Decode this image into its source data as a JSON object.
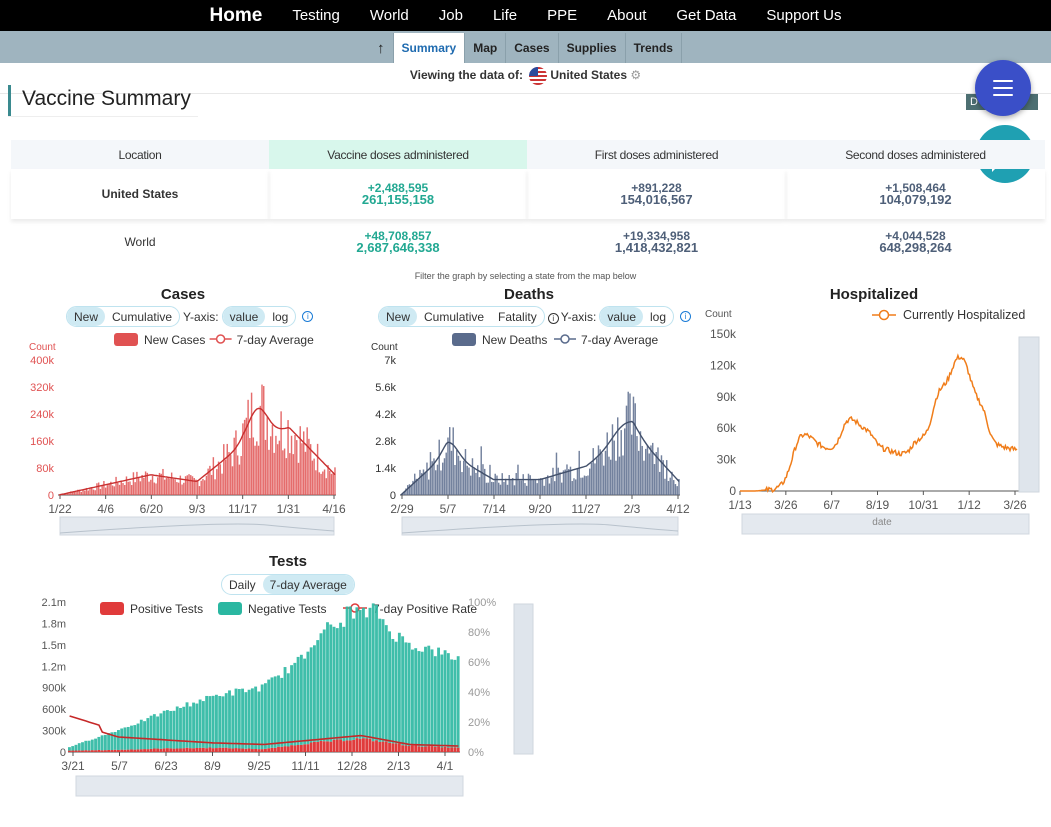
{
  "nav": {
    "items": [
      "Home",
      "Testing",
      "World",
      "Job",
      "Life",
      "PPE",
      "About",
      "Get Data",
      "Support Us"
    ]
  },
  "subnav": {
    "up_icon": "arrow-up-icon",
    "tabs": [
      "Summary",
      "Map",
      "Cases",
      "Supplies",
      "Trends"
    ],
    "active": "Summary"
  },
  "viewing": {
    "label": "Viewing the data of:",
    "country": "United States"
  },
  "section": {
    "title": "Vaccine Summary",
    "badge": "D"
  },
  "vaccine_table": {
    "headers": [
      "Location",
      "Vaccine doses administered",
      "First doses administered",
      "Second doses administered"
    ],
    "rows": [
      {
        "location": "United States",
        "vac_delta": "+2,488,595",
        "vac_total": "261,155,158",
        "first_delta": "+891,228",
        "first_total": "154,016,567",
        "second_delta": "+1,508,464",
        "second_total": "104,079,192"
      },
      {
        "location": "World",
        "vac_delta": "+48,708,857",
        "vac_total": "2,687,646,338",
        "first_delta": "+19,334,958",
        "first_total": "1,418,432,821",
        "second_delta": "+4,044,528",
        "second_total": "648,298,264"
      }
    ]
  },
  "filter_note": "Filter the graph by selecting a state from the map below",
  "colors": {
    "cases": "#e05252",
    "deaths": "#5a6b8c",
    "hosp": "#f07d1a",
    "neg": "#2ab7a1",
    "pos": "#e03b3b",
    "accent": "#3a4fc8"
  },
  "cases_chart": {
    "title": "Cases",
    "toggles": {
      "mode": [
        "New",
        "Cumulative"
      ],
      "axis_label": "Y-axis:",
      "axis": [
        "value",
        "log"
      ]
    },
    "count_label": "Count",
    "legend": [
      "New Cases",
      "7-day Average"
    ],
    "y_ticks": [
      "400k",
      "320k",
      "240k",
      "160k",
      "80k",
      "0"
    ],
    "x_ticks": [
      "1/22",
      "4/6",
      "6/20",
      "9/3",
      "11/17",
      "1/31",
      "4/16"
    ]
  },
  "deaths_chart": {
    "title": "Deaths",
    "toggles": {
      "mode": [
        "New",
        "Cumulative",
        "Fatality"
      ],
      "axis_label": "Y-axis:",
      "axis": [
        "value",
        "log"
      ]
    },
    "count_label": "Count",
    "legend": [
      "New Deaths",
      "7-day Average"
    ],
    "y_ticks": [
      "7k",
      "5.6k",
      "4.2k",
      "2.8k",
      "1.4k",
      "0"
    ],
    "x_ticks": [
      "2/29",
      "5/7",
      "7/14",
      "9/20",
      "11/27",
      "2/3",
      "4/12"
    ]
  },
  "hosp_chart": {
    "title": "Hospitalized",
    "count_label": "Count",
    "legend": [
      "Currently Hospitalized"
    ],
    "y_ticks": [
      "150k",
      "120k",
      "90k",
      "60k",
      "30k",
      "0"
    ],
    "x_ticks": [
      "1/13",
      "3/26",
      "6/7",
      "8/19",
      "10/31",
      "1/12",
      "3/26"
    ],
    "x_title": "date"
  },
  "tests_chart": {
    "title": "Tests",
    "toggles": [
      "Daily",
      "7-day Average"
    ],
    "legend": [
      "Positive Tests",
      "Negative Tests",
      "7-day Positive Rate"
    ],
    "y_ticks": [
      "2.1m",
      "1.8m",
      "1.5m",
      "1.2m",
      "900k",
      "600k",
      "300k",
      "0"
    ],
    "y2_ticks": [
      "100%",
      "80%",
      "60%",
      "40%",
      "20%",
      "0%"
    ],
    "x_ticks": [
      "3/21",
      "5/7",
      "6/23",
      "8/9",
      "9/25",
      "11/11",
      "12/28",
      "2/13",
      "4/1"
    ]
  },
  "chart_data": [
    {
      "type": "bar",
      "title": "Cases",
      "ylabel": "Count",
      "ylim": [
        0,
        400000
      ],
      "categories": [
        "1/22",
        "4/6",
        "6/20",
        "9/3",
        "11/17",
        "1/31",
        "4/16"
      ],
      "series": [
        {
          "name": "New Cases",
          "values": [
            0,
            30000,
            60000,
            40000,
            150000,
            200000,
            60000
          ]
        },
        {
          "name": "7-day Average",
          "values": [
            0,
            28000,
            55000,
            38000,
            145000,
            190000,
            58000
          ]
        }
      ]
    },
    {
      "type": "bar",
      "title": "Deaths",
      "ylabel": "Count",
      "ylim": [
        0,
        7000
      ],
      "categories": [
        "2/29",
        "5/7",
        "7/14",
        "9/20",
        "11/27",
        "2/3",
        "4/12"
      ],
      "series": [
        {
          "name": "New Deaths",
          "values": [
            0,
            2200,
            800,
            800,
            1500,
            3300,
            700
          ]
        },
        {
          "name": "7-day Average",
          "values": [
            0,
            2000,
            800,
            750,
            1400,
            3100,
            700
          ]
        }
      ]
    },
    {
      "type": "line",
      "title": "Hospitalized",
      "ylabel": "Count",
      "ylim": [
        0,
        150000
      ],
      "categories": [
        "1/13",
        "3/26",
        "6/7",
        "8/19",
        "10/31",
        "1/12",
        "3/26"
      ],
      "series": [
        {
          "name": "Currently Hospitalized",
          "values": [
            0,
            0,
            38000,
            48000,
            45000,
            130000,
            40000
          ]
        }
      ]
    },
    {
      "type": "bar",
      "title": "Tests",
      "ylim": [
        0,
        2100000
      ],
      "y2lim": [
        0,
        100
      ],
      "categories": [
        "3/21",
        "5/7",
        "6/23",
        "8/9",
        "9/25",
        "11/11",
        "12/28",
        "2/13",
        "4/1"
      ],
      "series": [
        {
          "name": "Positive Tests",
          "values": [
            20000,
            30000,
            50000,
            60000,
            40000,
            130000,
            190000,
            90000,
            60000
          ]
        },
        {
          "name": "Negative Tests",
          "values": [
            50000,
            280000,
            520000,
            740000,
            880000,
            1300000,
            1760000,
            1440000,
            1260000
          ]
        },
        {
          "name": "7-day Positive Rate",
          "values": [
            20,
            10,
            8,
            6,
            5,
            8,
            11,
            5,
            4
          ]
        }
      ]
    }
  ]
}
